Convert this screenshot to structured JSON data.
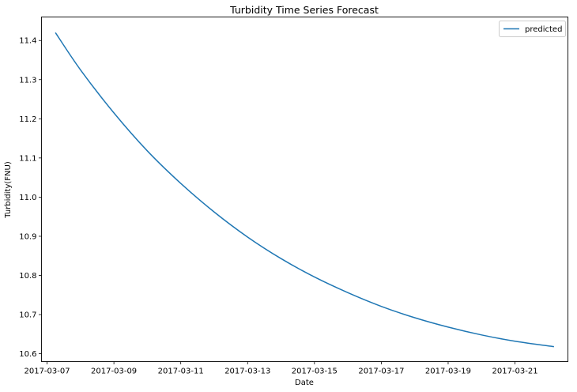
{
  "chart_data": {
    "type": "line",
    "title": "Turbidity Time Series Forecast",
    "xlabel": "Date",
    "ylabel": "Turbidity(FNU)",
    "xlim": [
      "2017-03-06 20:00",
      "2017-03-22 14:00"
    ],
    "ylim": [
      10.58,
      11.46
    ],
    "grid": false,
    "legend": "top-right",
    "x_ticks": [
      "2017-03-07",
      "2017-03-09",
      "2017-03-11",
      "2017-03-13",
      "2017-03-15",
      "2017-03-17",
      "2017-03-19",
      "2017-03-21"
    ],
    "y_ticks": [
      10.6,
      10.7,
      10.8,
      10.9,
      11.0,
      11.1,
      11.2,
      11.3,
      11.4
    ],
    "series": [
      {
        "name": "predicted",
        "color": "#1f77b4",
        "x": [
          "2017-03-07 06:00",
          "2017-03-08 00:00",
          "2017-03-09 00:00",
          "2017-03-10 00:00",
          "2017-03-11 00:00",
          "2017-03-12 00:00",
          "2017-03-13 00:00",
          "2017-03-14 00:00",
          "2017-03-15 00:00",
          "2017-03-16 00:00",
          "2017-03-17 00:00",
          "2017-03-18 00:00",
          "2017-03-19 00:00",
          "2017-03-20 00:00",
          "2017-03-21 00:00",
          "2017-03-22 04:00"
        ],
        "values": [
          11.42,
          11.325,
          11.215,
          11.118,
          11.035,
          10.962,
          10.898,
          10.843,
          10.796,
          10.756,
          10.721,
          10.692,
          10.668,
          10.648,
          10.632,
          10.618
        ]
      }
    ]
  }
}
